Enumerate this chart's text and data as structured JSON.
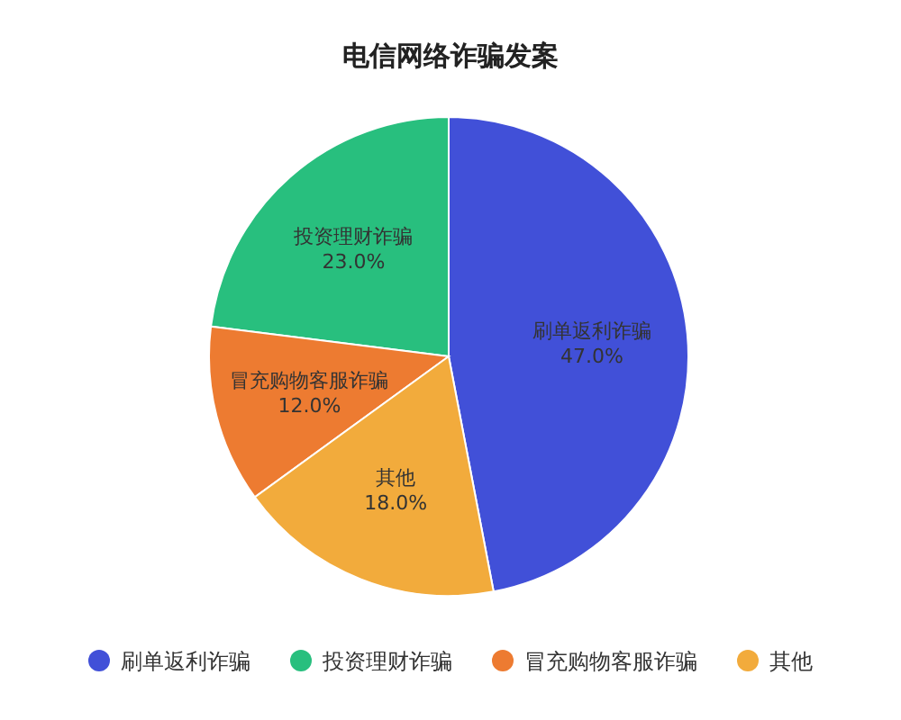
{
  "chart_data": {
    "type": "pie",
    "title": "电信网络诈骗发案",
    "categories": [
      "刷单返利诈骗",
      "投资理财诈骗",
      "冒充购物客服诈骗",
      "其他"
    ],
    "values": [
      47,
      23,
      12,
      18
    ],
    "colors": [
      "#4150d8",
      "#28bf7e",
      "#ed7b31",
      "#f2ab3c"
    ],
    "value_labels": [
      "47.0%",
      "23.0%",
      "12.0%",
      "18.0%"
    ],
    "legend": "bottom"
  }
}
